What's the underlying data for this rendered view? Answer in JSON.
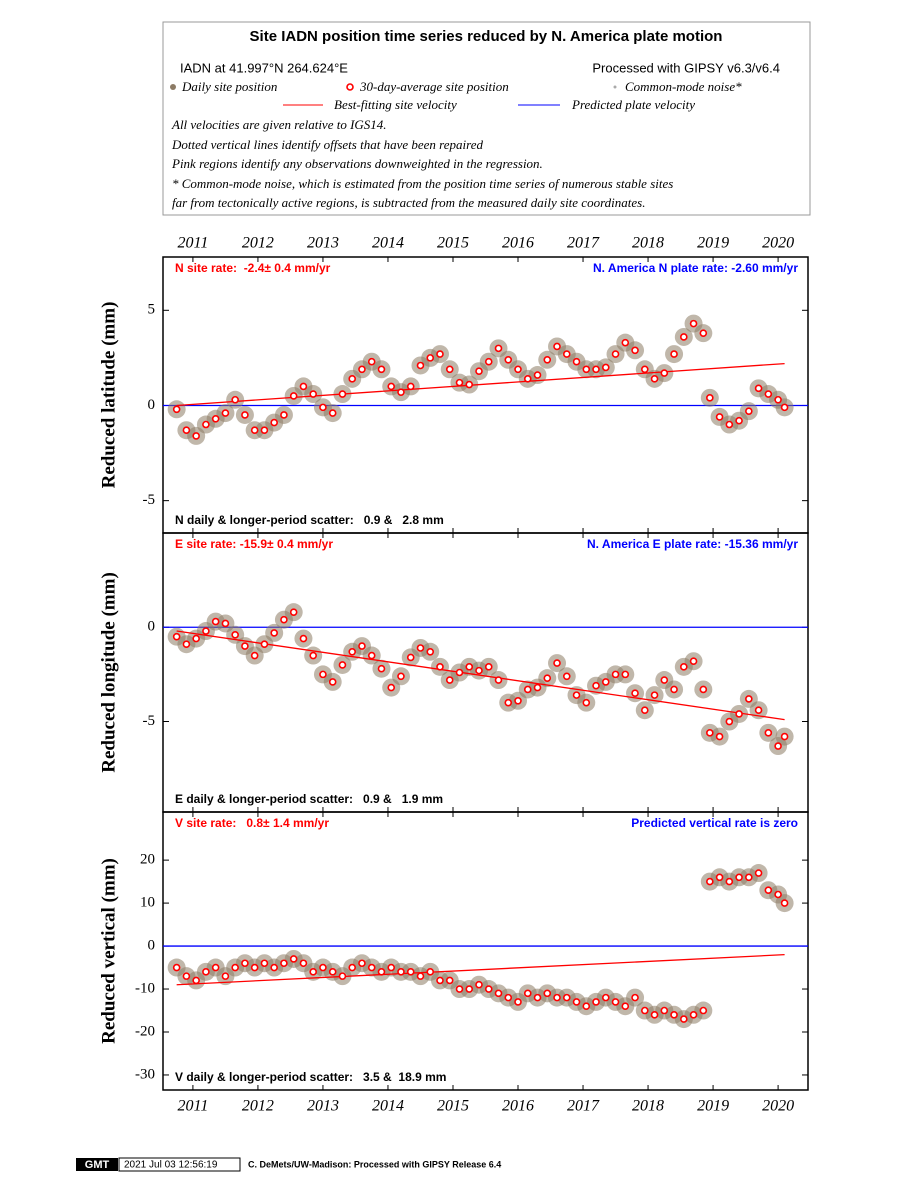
{
  "header": {
    "title": "Site IADN position time series reduced by N. America plate motion",
    "location": "IADN at 41.997°N 264.624°E",
    "processed": "Processed with GIPSY v6.3/v6.4",
    "legend_daily": "Daily site position",
    "legend_avg": "30-day-average site position",
    "legend_cmn": "Common-mode noise*",
    "legend_fit": "Best-fitting site velocity",
    "legend_plate": "Predicted plate velocity",
    "notes": [
      "All velocities are given relative to IGS14.",
      "Dotted vertical lines identify offsets that have been repaired",
      "Pink regions identify any observations downweighted in the regression.",
      "* Common-mode noise, which is estimated from the position time series of numerous stable sites",
      "far from tectonically active regions, is subtracted from the measured daily site coordinates."
    ]
  },
  "chart_data": [
    {
      "type": "scatter",
      "ylabel": "Reduced latitude (mm)",
      "rate_label": "N site rate:  -2.4± 0.4 mm/yr",
      "plate_label": "N. America N plate rate: -2.60 mm/yr",
      "scatter_label": "N daily & longer-period scatter:   0.9 &   2.8 mm",
      "xlim": [
        2010.54,
        2020.46
      ],
      "ylim": [
        -6.7,
        7.8
      ],
      "yticks": [
        -5,
        0,
        5
      ],
      "xticks": [
        2011,
        2012,
        2013,
        2014,
        2015,
        2016,
        2017,
        2018,
        2019,
        2020
      ],
      "xtick_labels": "top",
      "x": [
        2010.75,
        2010.9,
        2011.05,
        2011.2,
        2011.35,
        2011.5,
        2011.65,
        2011.8,
        2011.95,
        2012.1,
        2012.25,
        2012.4,
        2012.55,
        2012.7,
        2012.85,
        2013.0,
        2013.15,
        2013.3,
        2013.45,
        2013.6,
        2013.75,
        2013.9,
        2014.05,
        2014.2,
        2014.35,
        2014.5,
        2014.65,
        2014.8,
        2014.95,
        2015.1,
        2015.25,
        2015.4,
        2015.55,
        2015.7,
        2015.85,
        2016.0,
        2016.15,
        2016.3,
        2016.45,
        2016.6,
        2016.75,
        2016.9,
        2017.05,
        2017.2,
        2017.35,
        2017.5,
        2017.65,
        2017.8,
        2017.95,
        2018.1,
        2018.25,
        2018.4,
        2018.55,
        2018.7,
        2018.85,
        2018.95,
        2019.1,
        2019.25,
        2019.4,
        2019.55,
        2019.7,
        2019.85,
        2020.0,
        2020.1
      ],
      "series": [
        {
          "color": "#ff0000",
          "values": [
            -0.2,
            -1.3,
            -1.6,
            -1.0,
            -0.7,
            -0.4,
            0.3,
            -0.5,
            -1.3,
            -1.3,
            -0.9,
            -0.5,
            0.5,
            1.0,
            0.6,
            -0.1,
            -0.4,
            0.6,
            1.4,
            1.9,
            2.3,
            1.9,
            1.0,
            0.7,
            1.0,
            2.1,
            2.5,
            2.7,
            1.9,
            1.2,
            1.1,
            1.8,
            2.3,
            3.0,
            2.4,
            1.9,
            1.4,
            1.6,
            2.4,
            3.1,
            2.7,
            2.3,
            1.9,
            1.9,
            2.0,
            2.7,
            3.3,
            2.9,
            1.9,
            1.4,
            1.7,
            2.7,
            3.6,
            4.3,
            3.8,
            0.4,
            -0.6,
            -1.0,
            -0.8,
            -0.3,
            0.9,
            0.6,
            0.3,
            -0.1
          ]
        }
      ],
      "trend": {
        "color": "#ff0000",
        "x": [
          2010.75,
          2020.1
        ],
        "values": [
          0.0,
          2.2
        ]
      },
      "plate": {
        "color": "#0000ff",
        "x": [
          2010.54,
          2020.46
        ],
        "values": [
          0,
          0
        ]
      }
    },
    {
      "type": "scatter",
      "ylabel": "Reduced longitude (mm)",
      "rate_label": "E site rate: -15.9± 0.4 mm/yr",
      "plate_label": "N. America E plate rate: -15.36 mm/yr",
      "scatter_label": "E daily & longer-period scatter:   0.9 &   1.9 mm",
      "xlim": [
        2010.54,
        2020.46
      ],
      "ylim": [
        -9.8,
        5.0
      ],
      "yticks": [
        -5,
        0
      ],
      "xticks": [
        2011,
        2012,
        2013,
        2014,
        2015,
        2016,
        2017,
        2018,
        2019,
        2020
      ],
      "xtick_labels": "none",
      "x": [
        2010.75,
        2010.9,
        2011.05,
        2011.2,
        2011.35,
        2011.5,
        2011.65,
        2011.8,
        2011.95,
        2012.1,
        2012.25,
        2012.4,
        2012.55,
        2012.7,
        2012.85,
        2013.0,
        2013.15,
        2013.3,
        2013.45,
        2013.6,
        2013.75,
        2013.9,
        2014.05,
        2014.2,
        2014.35,
        2014.5,
        2014.65,
        2014.8,
        2014.95,
        2015.1,
        2015.25,
        2015.4,
        2015.55,
        2015.7,
        2015.85,
        2016.0,
        2016.15,
        2016.3,
        2016.45,
        2016.6,
        2016.75,
        2016.9,
        2017.05,
        2017.2,
        2017.35,
        2017.5,
        2017.65,
        2017.8,
        2017.95,
        2018.1,
        2018.25,
        2018.4,
        2018.55,
        2018.7,
        2018.85,
        2018.95,
        2019.1,
        2019.25,
        2019.4,
        2019.55,
        2019.7,
        2019.85,
        2020.0,
        2020.1
      ],
      "series": [
        {
          "color": "#ff0000",
          "values": [
            -0.5,
            -0.9,
            -0.6,
            -0.2,
            0.3,
            0.2,
            -0.4,
            -1.0,
            -1.5,
            -0.9,
            -0.3,
            0.4,
            0.8,
            -0.6,
            -1.5,
            -2.5,
            -2.9,
            -2.0,
            -1.3,
            -1.0,
            -1.5,
            -2.2,
            -3.2,
            -2.6,
            -1.6,
            -1.1,
            -1.3,
            -2.1,
            -2.8,
            -2.4,
            -2.1,
            -2.3,
            -2.1,
            -2.8,
            -4.0,
            -3.9,
            -3.3,
            -3.2,
            -2.7,
            -1.9,
            -2.6,
            -3.6,
            -4.0,
            -3.1,
            -2.9,
            -2.5,
            -2.5,
            -3.5,
            -4.4,
            -3.6,
            -2.8,
            -3.3,
            -2.1,
            -1.8,
            -3.3,
            -5.6,
            -5.8,
            -5.0,
            -4.6,
            -3.8,
            -4.4,
            -5.6,
            -6.3,
            -5.8
          ]
        }
      ],
      "trend": {
        "color": "#ff0000",
        "x": [
          2010.75,
          2020.1
        ],
        "values": [
          -0.2,
          -4.9
        ]
      },
      "plate": {
        "color": "#0000ff",
        "x": [
          2010.54,
          2020.46
        ],
        "values": [
          0,
          0
        ]
      }
    },
    {
      "type": "scatter",
      "ylabel": "Reduced vertical (mm)",
      "rate_label": "V site rate:   0.8± 1.4 mm/yr",
      "plate_label": "Predicted vertical rate is zero",
      "scatter_label": "V daily & longer-period scatter:   3.5 &  18.9 mm",
      "xlim": [
        2010.54,
        2020.46
      ],
      "ylim": [
        -33.5,
        31.2
      ],
      "yticks": [
        -30,
        -20,
        -10,
        0,
        10,
        20
      ],
      "xticks": [
        2011,
        2012,
        2013,
        2014,
        2015,
        2016,
        2017,
        2018,
        2019,
        2020
      ],
      "xtick_labels": "bottom",
      "x": [
        2010.75,
        2010.9,
        2011.05,
        2011.2,
        2011.35,
        2011.5,
        2011.65,
        2011.8,
        2011.95,
        2012.1,
        2012.25,
        2012.4,
        2012.55,
        2012.7,
        2012.85,
        2013.0,
        2013.15,
        2013.3,
        2013.45,
        2013.6,
        2013.75,
        2013.9,
        2014.05,
        2014.2,
        2014.35,
        2014.5,
        2014.65,
        2014.8,
        2014.95,
        2015.1,
        2015.25,
        2015.4,
        2015.55,
        2015.7,
        2015.85,
        2016.0,
        2016.15,
        2016.3,
        2016.45,
        2016.6,
        2016.75,
        2016.9,
        2017.05,
        2017.2,
        2017.35,
        2017.5,
        2017.65,
        2017.8,
        2017.95,
        2018.1,
        2018.25,
        2018.4,
        2018.55,
        2018.7,
        2018.85,
        2018.95,
        2019.1,
        2019.25,
        2019.4,
        2019.55,
        2019.7,
        2019.85,
        2020.0,
        2020.1
      ],
      "series": [
        {
          "color": "#ff0000",
          "values": [
            -5,
            -7,
            -8,
            -6,
            -5,
            -7,
            -5,
            -4,
            -5,
            -4,
            -5,
            -4,
            -3,
            -4,
            -6,
            -5,
            -6,
            -7,
            -5,
            -4,
            -5,
            -6,
            -5,
            -6,
            -6,
            -7,
            -6,
            -8,
            -8,
            -10,
            -10,
            -9,
            -10,
            -11,
            -12,
            -13,
            -11,
            -12,
            -11,
            -12,
            -12,
            -13,
            -14,
            -13,
            -12,
            -13,
            -14,
            -12,
            -15,
            -16,
            -15,
            -16,
            -17,
            -16,
            -15,
            15,
            16,
            15,
            16,
            16,
            17,
            13,
            12,
            10
          ]
        }
      ],
      "trend": {
        "color": "#ff0000",
        "x": [
          2010.75,
          2020.1
        ],
        "values": [
          -9,
          -2
        ]
      },
      "plate": {
        "color": "#0000ff",
        "x": [
          2010.54,
          2020.46
        ],
        "values": [
          0,
          0
        ]
      }
    }
  ],
  "footer": {
    "badge": "GMT",
    "timestamp": "2021 Jul 03 12:56:19",
    "credit": "C. DeMets/UW-Madison: Processed with GIPSY Release 6.4"
  }
}
